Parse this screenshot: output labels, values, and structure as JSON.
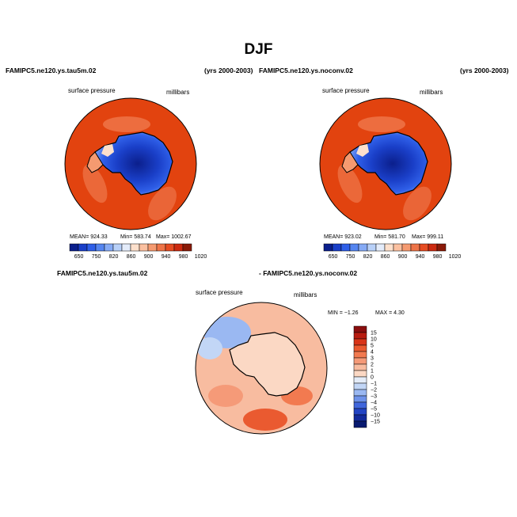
{
  "figure": {
    "title": "DJF",
    "top_left_case": "FAMIPC5.ne120.ys.tau5m.02",
    "top_left_years": "(yrs 2000-2003)",
    "top_right_case": "FAMIPC5.ne120.ys.noconv.02",
    "top_right_years": "(yrs 2000-2003)",
    "diff_case_a": "FAMIPC5.ne120.ys.tau5m.02",
    "diff_case_b": "- FAMIPC5.ne120.ys.noconv.02"
  },
  "chart_data": [
    {
      "type": "heatmap",
      "projection": "south-polar-stereographic",
      "variable": "surface pressure",
      "units": "millibars",
      "stats": {
        "mean_label": "MEAN= 924.33",
        "min_label": "Min= 583.74",
        "max_label": "Max= 1002.67"
      },
      "colorbar": {
        "tick_labels": [
          "650",
          "750",
          "820",
          "860",
          "900",
          "940",
          "980",
          "1020"
        ],
        "colors": [
          "#0b1f8c",
          "#1a3fc8",
          "#2f5fe8",
          "#5585f0",
          "#85aaf5",
          "#b8d0f8",
          "#e4ecfa",
          "#fde0cc",
          "#fbc0a0",
          "#f59a70",
          "#ee7448",
          "#e64c22",
          "#cc2a10",
          "#8a1a08"
        ]
      }
    },
    {
      "type": "heatmap",
      "projection": "south-polar-stereographic",
      "variable": "surface pressure",
      "units": "millibars",
      "stats": {
        "mean_label": "MEAN= 923.02",
        "min_label": "Min= 581.70",
        "max_label": "Max= 999.11"
      },
      "colorbar": {
        "tick_labels": [
          "650",
          "750",
          "820",
          "860",
          "900",
          "940",
          "980",
          "1020"
        ],
        "colors": [
          "#0b1f8c",
          "#1a3fc8",
          "#2f5fe8",
          "#5585f0",
          "#85aaf5",
          "#b8d0f8",
          "#e4ecfa",
          "#fde0cc",
          "#fbc0a0",
          "#f59a70",
          "#ee7448",
          "#e64c22",
          "#cc2a10",
          "#8a1a08"
        ]
      }
    },
    {
      "type": "heatmap",
      "projection": "south-polar-stereographic",
      "variable": "surface pressure",
      "units": "millibars",
      "stats": {
        "min_label": "MIN =  −1.26",
        "max_label": "MAX =    4.30"
      },
      "colorbar": {
        "orientation": "vertical",
        "tick_labels": [
          "15",
          "10",
          "5",
          "4",
          "3",
          "2",
          "1",
          "0",
          "−1",
          "−2",
          "−3",
          "−4",
          "−5",
          "−10",
          "−15"
        ],
        "colors": [
          "#8a0e0e",
          "#b81c10",
          "#d83418",
          "#ea5a30",
          "#f27a50",
          "#f59a78",
          "#f8bca0",
          "#fbd8c4",
          "#e4ecf8",
          "#c2d6f6",
          "#9ab8f2",
          "#6e92ea",
          "#4066dc",
          "#2244c4",
          "#122a9c",
          "#081a70"
        ]
      }
    }
  ]
}
